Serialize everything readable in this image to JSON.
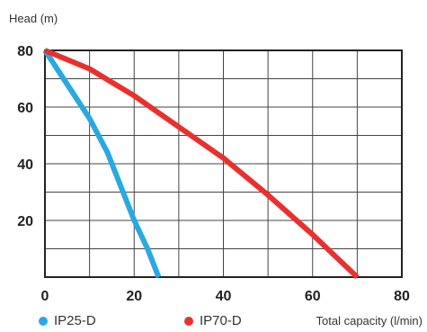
{
  "chart_data": {
    "type": "line",
    "ylabel": "Head (m)",
    "xlabel": "Total capacity (l/min)",
    "xlim": [
      0,
      80
    ],
    "ylim": [
      0,
      80
    ],
    "x_ticks": [
      "0",
      "20",
      "40",
      "60",
      "80"
    ],
    "y_ticks": [
      "20",
      "40",
      "60",
      "80"
    ],
    "grid": true,
    "legend_position": "bottom",
    "series": [
      {
        "name": "IP25-D",
        "color": "#2aa9e0",
        "x": [
          0,
          5,
          10,
          14,
          17,
          20,
          23,
          25.5
        ],
        "y": [
          80,
          68,
          56,
          44,
          32,
          20,
          10,
          0
        ]
      },
      {
        "name": "IP70-D",
        "color": "#e8312e",
        "x": [
          0,
          10,
          20,
          30,
          40,
          50,
          60,
          70
        ],
        "y": [
          80,
          73.5,
          64,
          53,
          42,
          29,
          15,
          0
        ]
      }
    ]
  }
}
